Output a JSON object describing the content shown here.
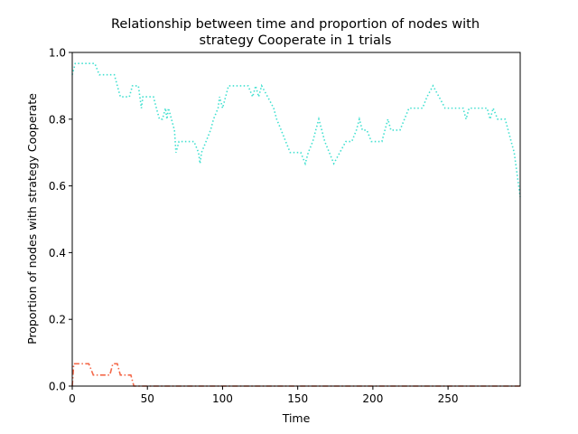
{
  "chart_data": {
    "type": "line",
    "title_lines": [
      "Relationship between time and proportion of nodes with",
      "strategy Cooperate in 1 trials"
    ],
    "xlabel": "Time",
    "ylabel": "Proportion of nodes with strategy Cooperate",
    "xlim": [
      0,
      298
    ],
    "ylim": [
      0,
      1.0
    ],
    "x_ticks": [
      0,
      50,
      100,
      150,
      200,
      250
    ],
    "y_ticks": [
      0.0,
      0.2,
      0.4,
      0.6,
      0.8,
      1.0
    ],
    "x_tick_labels": [
      "0",
      "50",
      "100",
      "150",
      "200",
      "250"
    ],
    "y_tick_labels": [
      "0.0",
      "0.2",
      "0.4",
      "0.6",
      "0.8",
      "1.0"
    ],
    "grid": false,
    "series": [
      {
        "color": "#40e0d0",
        "style": "dotted",
        "points": [
          [
            0,
            0.933
          ],
          [
            2,
            0.967
          ],
          [
            15,
            0.967
          ],
          [
            18,
            0.933
          ],
          [
            28,
            0.933
          ],
          [
            32,
            0.867
          ],
          [
            38,
            0.867
          ],
          [
            40,
            0.9
          ],
          [
            44,
            0.9
          ],
          [
            46,
            0.833
          ],
          [
            47,
            0.867
          ],
          [
            54,
            0.867
          ],
          [
            56,
            0.833
          ],
          [
            58,
            0.8
          ],
          [
            60,
            0.8
          ],
          [
            62,
            0.833
          ],
          [
            63,
            0.8
          ],
          [
            64,
            0.833
          ],
          [
            66,
            0.8
          ],
          [
            68,
            0.767
          ],
          [
            69,
            0.7
          ],
          [
            71,
            0.733
          ],
          [
            81,
            0.733
          ],
          [
            84,
            0.7
          ],
          [
            85,
            0.667
          ],
          [
            86,
            0.7
          ],
          [
            89,
            0.733
          ],
          [
            92,
            0.767
          ],
          [
            94,
            0.8
          ],
          [
            97,
            0.833
          ],
          [
            98,
            0.867
          ],
          [
            100,
            0.833
          ],
          [
            102,
            0.867
          ],
          [
            104,
            0.9
          ],
          [
            117,
            0.9
          ],
          [
            120,
            0.867
          ],
          [
            122,
            0.9
          ],
          [
            124,
            0.867
          ],
          [
            126,
            0.9
          ],
          [
            130,
            0.867
          ],
          [
            134,
            0.833
          ],
          [
            136,
            0.8
          ],
          [
            139,
            0.767
          ],
          [
            142,
            0.733
          ],
          [
            145,
            0.7
          ],
          [
            152,
            0.7
          ],
          [
            155,
            0.667
          ],
          [
            157,
            0.7
          ],
          [
            160,
            0.733
          ],
          [
            162,
            0.767
          ],
          [
            164,
            0.8
          ],
          [
            166,
            0.767
          ],
          [
            168,
            0.733
          ],
          [
            171,
            0.7
          ],
          [
            174,
            0.667
          ],
          [
            178,
            0.7
          ],
          [
            182,
            0.733
          ],
          [
            186,
            0.733
          ],
          [
            189,
            0.767
          ],
          [
            191,
            0.8
          ],
          [
            193,
            0.767
          ],
          [
            196,
            0.767
          ],
          [
            199,
            0.733
          ],
          [
            206,
            0.733
          ],
          [
            208,
            0.767
          ],
          [
            210,
            0.8
          ],
          [
            212,
            0.767
          ],
          [
            218,
            0.767
          ],
          [
            221,
            0.8
          ],
          [
            224,
            0.833
          ],
          [
            233,
            0.833
          ],
          [
            236,
            0.867
          ],
          [
            240,
            0.9
          ],
          [
            244,
            0.867
          ],
          [
            248,
            0.833
          ],
          [
            260,
            0.833
          ],
          [
            262,
            0.8
          ],
          [
            264,
            0.833
          ],
          [
            276,
            0.833
          ],
          [
            278,
            0.8
          ],
          [
            280,
            0.833
          ],
          [
            283,
            0.8
          ],
          [
            288,
            0.8
          ],
          [
            290,
            0.767
          ],
          [
            292,
            0.733
          ],
          [
            294,
            0.7
          ],
          [
            296,
            0.633
          ],
          [
            298,
            0.567
          ]
        ]
      },
      {
        "color": "#f4694a",
        "style": "dashdot",
        "points": [
          [
            0,
            0.0
          ],
          [
            1,
            0.067
          ],
          [
            11,
            0.067
          ],
          [
            14,
            0.033
          ],
          [
            25,
            0.033
          ],
          [
            27,
            0.067
          ],
          [
            30,
            0.067
          ],
          [
            32,
            0.033
          ],
          [
            39,
            0.033
          ],
          [
            41,
            0.0
          ],
          [
            298,
            0.0
          ]
        ]
      }
    ]
  }
}
